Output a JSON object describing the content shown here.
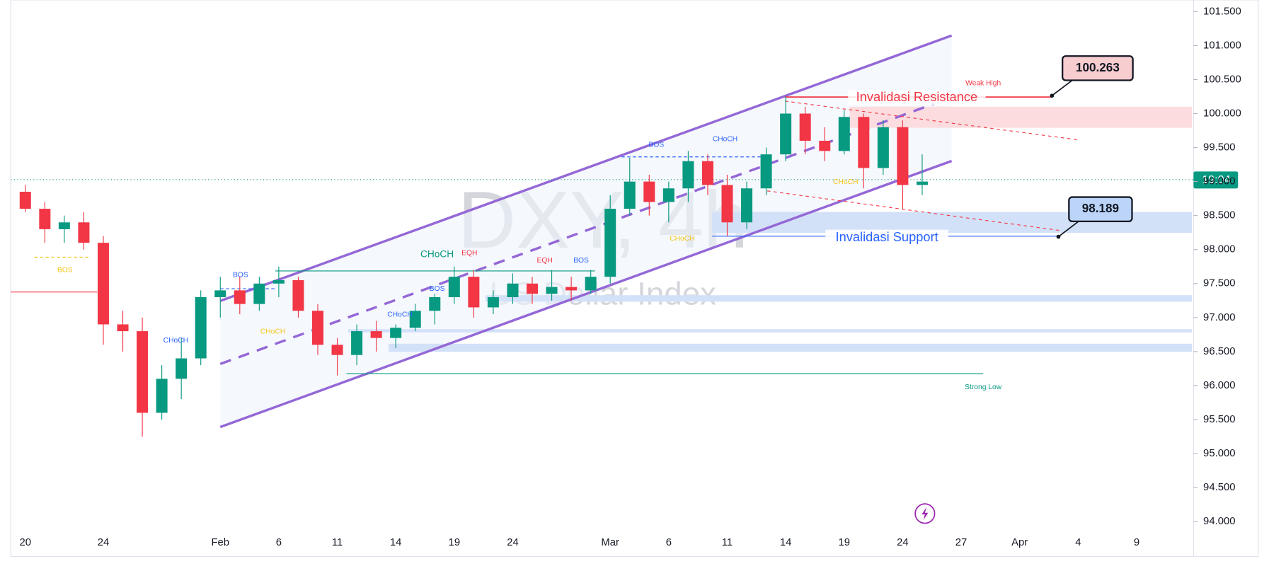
{
  "chart_data": {
    "type": "candlestick",
    "watermark_title": "DXY, 4h",
    "watermark_subtitle": "US Dollar Index",
    "categories": [
      "20",
      null,
      null,
      null,
      "24",
      null,
      null,
      null,
      null,
      null,
      "Feb",
      null,
      null,
      "6",
      null,
      null,
      "11",
      null,
      null,
      "14",
      null,
      null,
      "19",
      null,
      null,
      "24",
      null,
      null,
      null,
      null,
      "Mar",
      null,
      null,
      "6",
      null,
      null,
      "11",
      null,
      null,
      "14",
      null,
      null,
      "19",
      null,
      null,
      "24",
      null,
      null,
      "27",
      null,
      null,
      "Apr",
      null,
      null,
      "4",
      null,
      null,
      "9",
      null,
      null
    ],
    "open": [
      98.85,
      98.6,
      98.3,
      98.4,
      98.1,
      96.9,
      96.8,
      95.6,
      96.1,
      96.4,
      97.3,
      97.4,
      97.2,
      97.5,
      97.55,
      97.1,
      96.6,
      96.45,
      96.8,
      96.7,
      96.85,
      97.1,
      97.3,
      97.6,
      97.15,
      97.3,
      97.5,
      97.35,
      97.45,
      97.4,
      97.6,
      98.6,
      99.0,
      98.7,
      98.9,
      99.3,
      98.95,
      98.4,
      98.9,
      99.4,
      100.0,
      99.6,
      99.45,
      99.95,
      99.2,
      99.8,
      98.95,
      null,
      null,
      null,
      null,
      null,
      null,
      null,
      null,
      null,
      null,
      null,
      null,
      null
    ],
    "high": [
      98.95,
      98.7,
      98.5,
      98.55,
      98.2,
      97.1,
      97.0,
      96.3,
      96.7,
      97.4,
      97.6,
      97.6,
      97.6,
      97.75,
      97.6,
      97.2,
      96.7,
      96.9,
      96.95,
      96.9,
      97.2,
      97.35,
      97.75,
      97.7,
      97.4,
      97.65,
      97.6,
      97.7,
      97.6,
      97.7,
      98.8,
      99.35,
      99.1,
      99.0,
      99.45,
      99.4,
      99.1,
      99.0,
      99.5,
      100.25,
      100.1,
      99.8,
      100.05,
      100.0,
      99.9,
      99.9,
      99.4,
      null,
      null,
      null,
      null,
      null,
      null,
      null,
      null,
      null,
      null,
      null,
      null,
      null
    ],
    "low": [
      98.55,
      98.1,
      98.1,
      98.0,
      96.6,
      96.5,
      95.25,
      95.5,
      95.8,
      96.3,
      97.0,
      97.05,
      97.1,
      97.3,
      97.0,
      96.45,
      96.15,
      96.3,
      96.5,
      96.55,
      96.8,
      96.9,
      97.2,
      97.0,
      97.05,
      97.2,
      97.2,
      97.25,
      97.25,
      97.35,
      97.5,
      98.5,
      98.5,
      98.4,
      98.7,
      98.8,
      98.2,
      98.3,
      98.8,
      99.3,
      99.4,
      99.3,
      99.4,
      98.9,
      99.1,
      98.6,
      98.8,
      null,
      null,
      null,
      null,
      null,
      null,
      null,
      null,
      null,
      null,
      null,
      null,
      null
    ],
    "close": [
      98.6,
      98.3,
      98.4,
      98.1,
      96.9,
      96.8,
      95.6,
      96.1,
      96.4,
      97.3,
      97.4,
      97.2,
      97.5,
      97.55,
      97.1,
      96.6,
      96.45,
      96.8,
      96.7,
      96.85,
      97.1,
      97.3,
      97.6,
      97.15,
      97.3,
      97.5,
      97.35,
      97.45,
      97.4,
      97.6,
      98.6,
      99.0,
      98.7,
      98.9,
      99.3,
      98.95,
      98.4,
      98.9,
      99.4,
      100.0,
      99.6,
      99.45,
      99.95,
      99.2,
      99.8,
      98.95,
      99.0,
      null,
      null,
      null,
      null,
      null,
      null,
      null,
      null,
      null,
      null,
      null,
      null,
      null
    ],
    "up_color": "#089981",
    "down_color": "#f23645",
    "ylim": [
      93.88,
      101.67
    ],
    "yticks": [
      {
        "value": 94,
        "label": "94.000"
      },
      {
        "value": 94.5,
        "label": "94.500"
      },
      {
        "value": 95,
        "label": "95.000"
      },
      {
        "value": 95.5,
        "label": "95.500"
      },
      {
        "value": 96,
        "label": "96.000"
      },
      {
        "value": 96.5,
        "label": "96.500"
      },
      {
        "value": 97,
        "label": "97.000"
      },
      {
        "value": 97.5,
        "label": "97.500"
      },
      {
        "value": 98,
        "label": "98.000"
      },
      {
        "value": 98.5,
        "label": "98.500"
      },
      {
        "value": 99,
        "label": "99.000"
      },
      {
        "value": 99.5,
        "label": "99.500"
      },
      {
        "value": 100,
        "label": "100.000"
      },
      {
        "value": 100.5,
        "label": "100.500"
      },
      {
        "value": 101,
        "label": "101.000"
      },
      {
        "value": 101.5,
        "label": "101.500"
      }
    ],
    "price_callouts": [
      100.263,
      98.189
    ],
    "countdown_label": "19:04",
    "annotations": [
      "BOS",
      "CHoCH",
      "BOS",
      "CHoCH",
      "CHoCH",
      "BOS",
      "CHoCH",
      "EQH",
      "EQH",
      "BOS",
      "BOS",
      "CHoCH",
      "CHoCH",
      "CHoCH",
      "Weak High",
      "Strong Low",
      "Invalidasi Resistance",
      "Invalidasi Support"
    ]
  }
}
